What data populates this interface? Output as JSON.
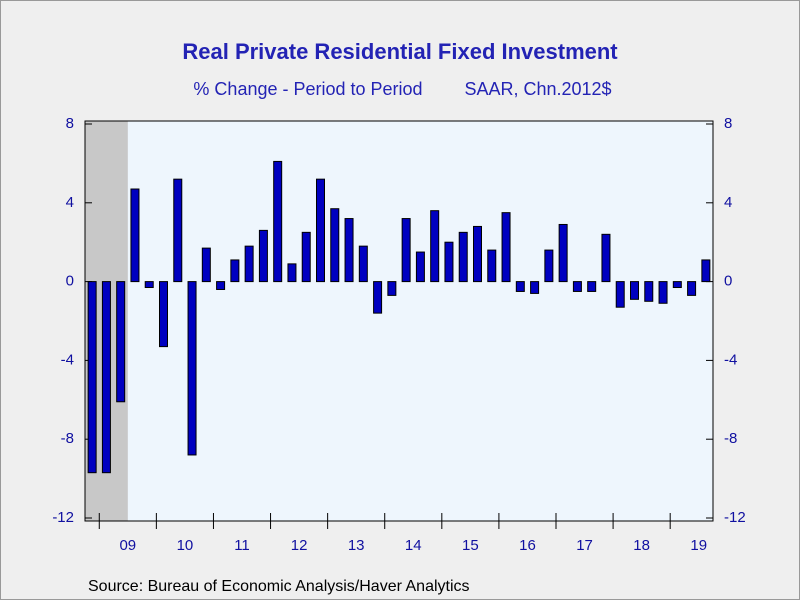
{
  "chart_data": {
    "type": "bar",
    "title": "Real Private Residential Fixed Investment",
    "subtitle": "% Change - Period to Period",
    "units": "SAAR, Chn.2012$",
    "source": "Source:  Bureau of Economic Analysis/Haver Analytics",
    "categories": [
      null,
      null,
      "09",
      null,
      null,
      null,
      "10",
      null,
      null,
      null,
      "11",
      null,
      null,
      null,
      "12",
      null,
      null,
      null,
      "13",
      null,
      null,
      null,
      "14",
      null,
      null,
      null,
      "15",
      null,
      null,
      null,
      "16",
      null,
      null,
      null,
      "17",
      null,
      null,
      null,
      "18",
      null,
      null,
      null,
      "19",
      null
    ],
    "values": [
      -9.7,
      -9.7,
      -6.1,
      4.7,
      -0.3,
      -3.3,
      5.2,
      -8.8,
      1.7,
      -0.4,
      1.1,
      1.8,
      2.6,
      6.1,
      0.9,
      2.5,
      5.2,
      3.7,
      3.2,
      1.8,
      -1.6,
      -0.7,
      3.2,
      1.5,
      3.6,
      2.0,
      2.5,
      2.8,
      1.6,
      3.5,
      -0.5,
      -0.6,
      1.6,
      2.9,
      -0.5,
      -0.5,
      2.4,
      -1.3,
      -0.9,
      -1.0,
      -1.1,
      -0.3,
      -0.7,
      1.1
    ],
    "color": "#0000c0",
    "recession_bands": [
      [
        0,
        2
      ]
    ],
    "ylim": [
      -12,
      8
    ],
    "yticks": [
      -12,
      -8,
      -4,
      0,
      4,
      8
    ],
    "y2lim": [
      -12,
      8
    ],
    "y2ticks": [
      -12,
      -8,
      -4,
      0,
      4,
      8
    ]
  }
}
